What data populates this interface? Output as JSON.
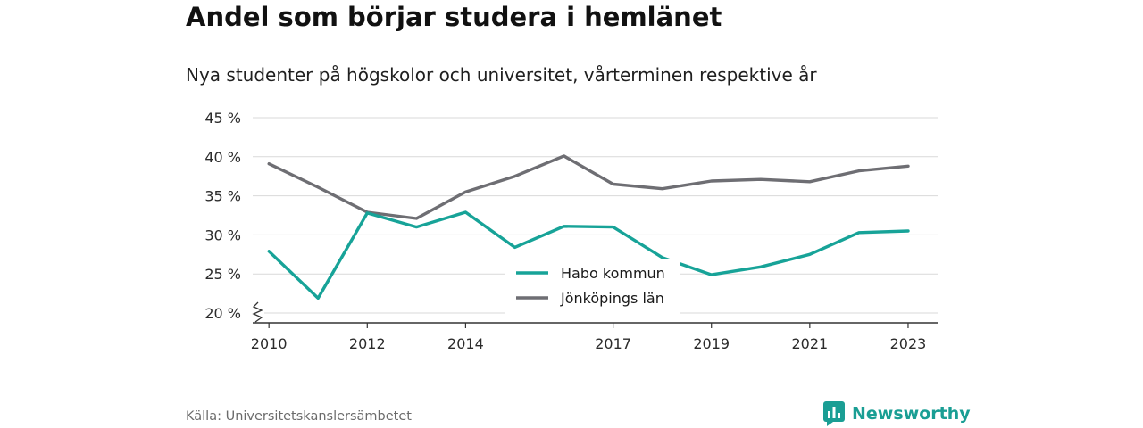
{
  "title": "Andel som börjar studera i hemlänet",
  "subtitle": "Nya studenter på högskolor och universitet, vårterminen respektive år",
  "source": "Källa: Universitetskanslersämbetet",
  "brand": {
    "name": "Newsworthy",
    "icon": "newsworthy-logo-icon",
    "color": "#1a9e94"
  },
  "chart_data": {
    "type": "line",
    "x": [
      2010,
      2011,
      2012,
      2013,
      2014,
      2015,
      2016,
      2017,
      2018,
      2019,
      2020,
      2021,
      2022,
      2023
    ],
    "x_tick_labels": [
      "2010",
      "2012",
      "2014",
      "2017",
      "2019",
      "2021",
      "2023"
    ],
    "y_tick_labels": [
      "20 %",
      "25 %",
      "30 %",
      "35 %",
      "40 %",
      "45 %"
    ],
    "ylim": [
      20,
      45
    ],
    "ylabel": "",
    "xlabel": "",
    "grid": true,
    "axis_break": true,
    "legend_position": "center-bottom",
    "series": [
      {
        "name": "Habo kommun",
        "color": "#17a398",
        "values": [
          27.9,
          21.9,
          32.8,
          31.0,
          32.9,
          28.4,
          31.1,
          31.0,
          27.1,
          24.9,
          25.9,
          27.5,
          30.3,
          30.5
        ]
      },
      {
        "name": "Jönköpings län",
        "color": "#6e6e73",
        "values": [
          39.1,
          36.1,
          32.9,
          32.1,
          35.5,
          37.5,
          40.1,
          36.5,
          35.9,
          36.9,
          37.1,
          36.8,
          38.2,
          38.8
        ]
      }
    ]
  }
}
